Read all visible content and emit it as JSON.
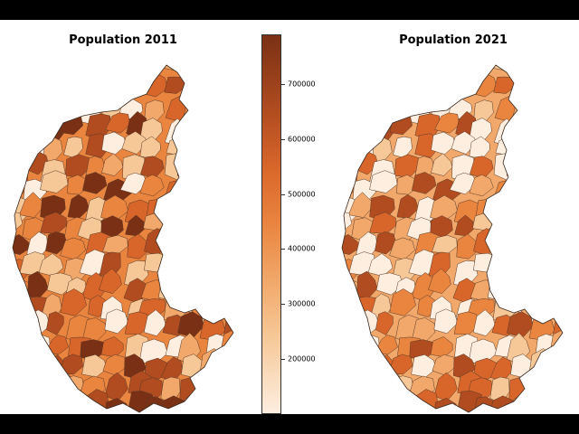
{
  "maps": [
    {
      "title": "Population 2011"
    },
    {
      "title": "Population 2021"
    }
  ],
  "colorbar": {
    "ticks": [
      {
        "value": 200000,
        "label": "200000"
      },
      {
        "value": 300000,
        "label": "300000"
      },
      {
        "value": 400000,
        "label": "400000"
      },
      {
        "value": 500000,
        "label": "500000"
      },
      {
        "value": 600000,
        "label": "600000"
      },
      {
        "value": 700000,
        "label": "700000"
      }
    ],
    "min": 100000,
    "max": 790000,
    "colors": [
      "#fdeee0",
      "#f6c898",
      "#f1a86a",
      "#ea8540",
      "#d8662a",
      "#b04c20",
      "#7a3014"
    ]
  }
}
